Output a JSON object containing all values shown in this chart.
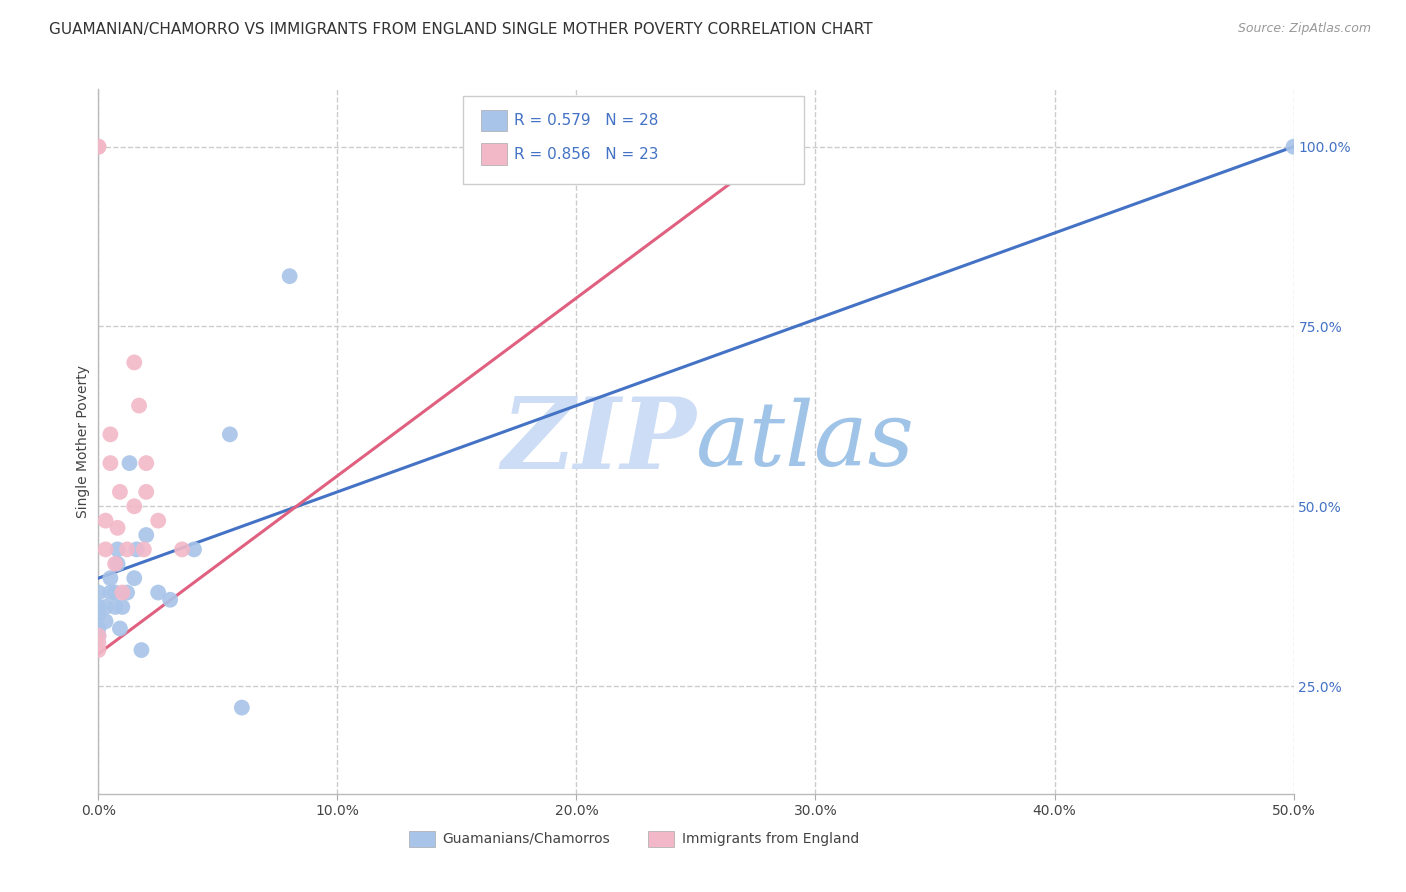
{
  "title": "GUAMANIAN/CHAMORRO VS IMMIGRANTS FROM ENGLAND SINGLE MOTHER POVERTY CORRELATION CHART",
  "source": "Source: ZipAtlas.com",
  "ylabel": "Single Mother Poverty",
  "R1": 0.579,
  "N1": 28,
  "R2": 0.856,
  "N2": 23,
  "color_blue": "#a8c4e8",
  "color_pink": "#f2b8c8",
  "line_blue": "#4472c4",
  "line_pink": "#e06080",
  "watermark_zip": "ZIP",
  "watermark_atlas": "atlas",
  "watermark_color_zip": "#ccddf0",
  "watermark_color_atlas": "#a8c8e8",
  "background_color": "#ffffff",
  "grid_color": "#cccccc",
  "legend_label1": "Guamanians/Chamorros",
  "legend_label2": "Immigrants from England",
  "xlim": [
    0.0,
    0.5
  ],
  "ylim": [
    0.1,
    1.08
  ],
  "yticks": [
    0.25,
    0.5,
    0.75,
    1.0
  ],
  "xticks": [
    0.0,
    0.1,
    0.2,
    0.3,
    0.4,
    0.5
  ],
  "blue_line_x": [
    0.0,
    0.5
  ],
  "blue_line_y": [
    0.4,
    1.0
  ],
  "pink_line_x": [
    0.0,
    0.285
  ],
  "pink_line_y": [
    0.295,
    1.0
  ],
  "blue_points_x": [
    0.0,
    0.0,
    0.0,
    0.0,
    0.0,
    0.003,
    0.003,
    0.005,
    0.005,
    0.007,
    0.007,
    0.008,
    0.008,
    0.009,
    0.01,
    0.012,
    0.013,
    0.015,
    0.016,
    0.018,
    0.02,
    0.025,
    0.03,
    0.04,
    0.055,
    0.06,
    0.08,
    0.5
  ],
  "blue_points_y": [
    0.32,
    0.33,
    0.35,
    0.36,
    0.38,
    0.34,
    0.36,
    0.38,
    0.4,
    0.36,
    0.38,
    0.42,
    0.44,
    0.33,
    0.36,
    0.38,
    0.56,
    0.4,
    0.44,
    0.3,
    0.46,
    0.38,
    0.37,
    0.44,
    0.6,
    0.22,
    0.82,
    1.0
  ],
  "pink_points_x": [
    0.0,
    0.0,
    0.0,
    0.0,
    0.0,
    0.003,
    0.003,
    0.005,
    0.005,
    0.007,
    0.008,
    0.009,
    0.01,
    0.012,
    0.015,
    0.015,
    0.017,
    0.019,
    0.02,
    0.02,
    0.025,
    0.035,
    0.285
  ],
  "pink_points_y": [
    0.3,
    0.31,
    0.32,
    1.0,
    1.0,
    0.44,
    0.48,
    0.56,
    0.6,
    0.42,
    0.47,
    0.52,
    0.38,
    0.44,
    0.5,
    0.7,
    0.64,
    0.44,
    0.52,
    0.56,
    0.48,
    0.44,
    1.0
  ],
  "title_fontsize": 11,
  "tick_fontsize": 10,
  "source_fontsize": 9,
  "legend_fontsize": 11
}
